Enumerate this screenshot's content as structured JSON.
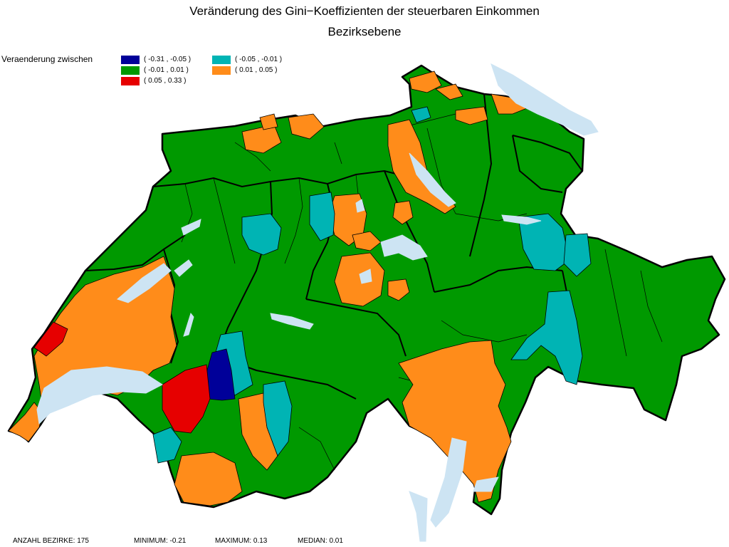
{
  "title": "Veränderung des Gini−Koeffizienten der steuerbaren Einkommen",
  "subtitle": "Bezirksebene",
  "legend": {
    "label": "Veraenderung zwischen",
    "items": [
      {
        "range": "( -0.31 , -0.05 )",
        "color": "#000099"
      },
      {
        "range": "( -0.05 , -0.01 )",
        "color": "#00B4B4"
      },
      {
        "range": "( -0.01 , 0.01 )",
        "color": "#009900"
      },
      {
        "range": "( 0.01 , 0.05 )",
        "color": "#FF8C1A"
      },
      {
        "range": "( 0.05 , 0.33 )",
        "color": "#E60000"
      }
    ]
  },
  "map": {
    "lake_color": "#CDE4F3",
    "border_color": "#000000"
  },
  "footer": {
    "count": "ANZAHL BEZIRKE: 175",
    "minimum": "MINIMUM: -0.21",
    "maximum": "MAXIMUM: 0.13",
    "median": "MEDIAN: 0.01"
  }
}
